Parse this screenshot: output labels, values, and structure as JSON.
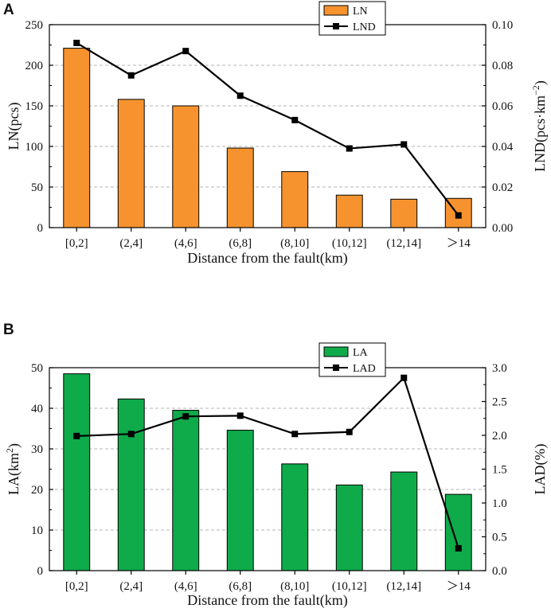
{
  "chart_data": [
    {
      "panel": "A",
      "type": "bar+line",
      "categories": [
        "[0,2]",
        "(2,4]",
        "(4,6]",
        "(6,8]",
        "(8,10]",
        "(10,12]",
        "(12,14]",
        "＞14"
      ],
      "bars": {
        "name": "LN",
        "values": [
          221,
          158,
          150,
          98,
          69,
          40,
          35,
          36
        ],
        "color": "#f7932e"
      },
      "line": {
        "name": "LND",
        "values": [
          0.091,
          0.075,
          0.087,
          0.065,
          0.053,
          0.039,
          0.041,
          0.006
        ],
        "color": "#000000"
      },
      "xlabel": "Distance from the fault(km)",
      "ylabel_left": "LN(pcs)",
      "ylabel_right_main": "LND(pcs·km",
      "ylabel_right_sup": "−2",
      "ylabel_right_close": ")",
      "ylim_left": [
        0,
        250
      ],
      "ylim_right": [
        0,
        0.1
      ],
      "yticks_left": [
        "0",
        "50",
        "100",
        "150",
        "200",
        "250"
      ],
      "yticks_right": [
        "0.00",
        "0.02",
        "0.04",
        "0.06",
        "0.08",
        "0.10"
      ],
      "legend_position": "top-right",
      "grid": "dashed horizontal"
    },
    {
      "panel": "B",
      "type": "bar+line",
      "categories": [
        "[0,2]",
        "(2,4]",
        "(4,6]",
        "(6,8]",
        "(8,10]",
        "(10,12]",
        "(12,14]",
        "＞14"
      ],
      "bars": {
        "name": "LA",
        "values": [
          48.5,
          42.3,
          39.5,
          34.6,
          26.3,
          21.1,
          24.3,
          18.8
        ],
        "color": "#0faa4a"
      },
      "line": {
        "name": "LAD",
        "values": [
          1.99,
          2.02,
          2.28,
          2.29,
          2.02,
          2.05,
          2.85,
          0.33
        ],
        "color": "#000000"
      },
      "xlabel": "Distance from the fault(km)",
      "ylabel_left_main": "LA(km",
      "ylabel_left_sup": "2",
      "ylabel_left_close": ")",
      "ylabel_right": "LAD(%)",
      "ylim_left": [
        0,
        50
      ],
      "ylim_right": [
        0,
        3
      ],
      "yticks_left": [
        "0",
        "10",
        "20",
        "30",
        "40",
        "50"
      ],
      "yticks_right": [
        "0.0",
        "0.5",
        "1.0",
        "1.5",
        "2.0",
        "2.5",
        "3.0"
      ],
      "legend_position": "top-right",
      "grid": "dashed horizontal"
    }
  ]
}
